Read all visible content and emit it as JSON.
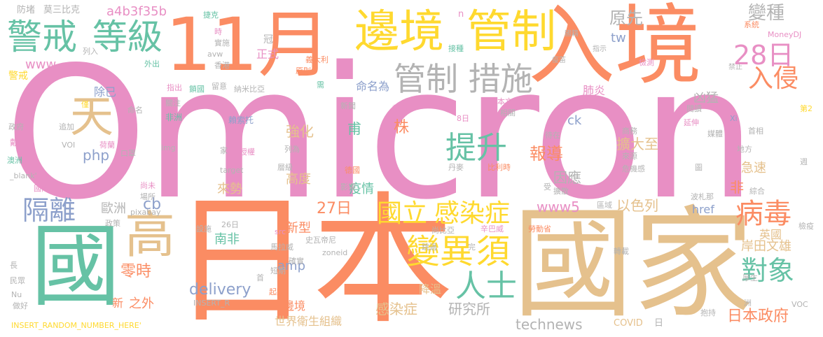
{
  "words": [
    {
      "text": "Omicron",
      "color": "#e88fc4"
    },
    {
      "text": "日本",
      "color": "#fb8c63"
    },
    {
      "text": "國家",
      "color": "#e5c18d"
    },
    {
      "text": "入境",
      "color": "#fb8c63"
    },
    {
      "text": "11月",
      "color": "#fb8c63"
    },
    {
      "text": "國",
      "color": "#66c2a5"
    },
    {
      "text": "邊境",
      "color": "#ffd92f"
    },
    {
      "text": "管制",
      "color": "#ffd92f"
    },
    {
      "text": "管制 措施",
      "color": "#b3b3b3"
    },
    {
      "text": "警戒",
      "color": "#66c2a5"
    },
    {
      "text": "等級",
      "color": "#66c2a5"
    },
    {
      "text": "高",
      "color": "#e5c18d"
    },
    {
      "text": "天",
      "color": "#e5c18d"
    },
    {
      "text": "28日",
      "color": "#e88fc4"
    },
    {
      "text": "入侵",
      "color": "#fb8c63"
    },
    {
      "text": "變種",
      "color": "#b3b3b3"
    },
    {
      "text": "原先",
      "color": "#b3b3b3"
    },
    {
      "text": "病毒",
      "color": "#fb8c63"
    },
    {
      "text": "提升",
      "color": "#66c2a5"
    },
    {
      "text": "變異",
      "color": "#ffd92f"
    },
    {
      "text": "須",
      "color": "#ffd92f"
    },
    {
      "text": "人士",
      "color": "#66c2a5"
    },
    {
      "text": "國立",
      "color": "#ffd92f"
    },
    {
      "text": "感染症",
      "color": "#ffd92f"
    },
    {
      "text": "隔離",
      "color": "#8da0cb"
    },
    {
      "text": "對象",
      "color": "#66c2a5"
    },
    {
      "text": "岸田文雄",
      "color": "#e5c18d"
    },
    {
      "text": "日本政府",
      "color": "#fb8c63"
    },
    {
      "text": "英國",
      "color": "#e5c18d"
    },
    {
      "text": "凶猛",
      "color": "#b3b3b3"
    },
    {
      "text": "a4b3f35b",
      "color": "#e88fc4"
    },
    {
      "text": "www",
      "color": "#e88fc4"
    },
    {
      "text": "php",
      "color": "#8da0cb"
    },
    {
      "text": "cb",
      "color": "#8da0cb"
    },
    {
      "text": "amp",
      "color": "#8da0cb"
    },
    {
      "text": "delivery",
      "color": "#8da0cb"
    },
    {
      "text": "technews",
      "color": "#b3b3b3"
    },
    {
      "text": "www5",
      "color": "#e88fc4"
    },
    {
      "text": "tw",
      "color": "#8da0cb"
    },
    {
      "text": "ck",
      "color": "#8da0cb"
    },
    {
      "text": "href",
      "color": "#8da0cb"
    },
    {
      "text": "27日",
      "color": "#fb8c63"
    },
    {
      "text": "強化",
      "color": "#e5c18d"
    },
    {
      "text": "甫",
      "color": "#66c2a5"
    },
    {
      "text": "株",
      "color": "#fb8c63"
    },
    {
      "text": "報導",
      "color": "#fb8c63"
    },
    {
      "text": "擴大至",
      "color": "#e5c18d"
    },
    {
      "text": "因應",
      "color": "#b3b3b3"
    },
    {
      "text": "以色列",
      "color": "#e5c18d"
    },
    {
      "text": "急速",
      "color": "#e5c18d"
    },
    {
      "text": "非",
      "color": "#fb8c63"
    },
    {
      "text": "來勢",
      "color": "#e5c18d"
    },
    {
      "text": "高度",
      "color": "#e5c18d"
    },
    {
      "text": "疫情",
      "color": "#66c2a5"
    },
    {
      "text": "新型",
      "color": "#fb8c63"
    },
    {
      "text": "歐洲",
      "color": "#b3b3b3"
    },
    {
      "text": "南非",
      "color": "#66c2a5"
    },
    {
      "text": "零時",
      "color": "#fb8c63"
    },
    {
      "text": "之外",
      "color": "#fb8c63"
    },
    {
      "text": "新",
      "color": "#fb8c63"
    },
    {
      "text": "邊境",
      "color": "#fb8c63"
    },
    {
      "text": "世界衛生組織",
      "color": "#e5c18d"
    },
    {
      "text": "感染症",
      "color": "#e5c18d"
    },
    {
      "text": "研究所",
      "color": "#b3b3b3"
    },
    {
      "text": "降溫",
      "color": "#e5c18d"
    },
    {
      "text": "除已",
      "color": "#8da0cb"
    },
    {
      "text": "正式",
      "color": "#e88fc4"
    },
    {
      "text": "命名為",
      "color": "#8da0cb"
    },
    {
      "text": "肺炎",
      "color": "#e88fc4"
    },
    {
      "text": "防堵",
      "color": "#b3b3b3"
    },
    {
      "text": "莫三比克",
      "color": "#b3b3b3"
    },
    {
      "text": "警戒",
      "color": "#ffd92f"
    },
    {
      "text": "列入",
      "color": "#b3b3b3"
    },
    {
      "text": "外出",
      "color": "#66c2a5"
    },
    {
      "text": "時",
      "color": "#e88fc4"
    },
    {
      "text": "實施",
      "color": "#b3b3b3"
    },
    {
      "text": "香港",
      "color": "#b3b3b3"
    },
    {
      "text": "avw",
      "color": "#b3b3b3"
    },
    {
      "text": "冠",
      "color": "#b3b3b3"
    },
    {
      "text": "捷克",
      "color": "#66c2a5"
    },
    {
      "text": "義大利",
      "color": "#fb8c63"
    },
    {
      "text": "接種",
      "color": "#66c2a5"
    },
    {
      "text": "n",
      "color": "#e88fc4"
    },
    {
      "text": "國籍",
      "color": "#b3b3b3"
    },
    {
      "text": "指示",
      "color": "#b3b3b3"
    },
    {
      "text": "疫苗",
      "color": "#b3b3b3"
    },
    {
      "text": "檢測",
      "color": "#e88fc4"
    },
    {
      "text": "禁止",
      "color": "#b3b3b3"
    },
    {
      "text": "系統",
      "color": "#fb8c63"
    },
    {
      "text": "MoneyDJ",
      "color": "#e88fc4"
    },
    {
      "text": "原則",
      "color": "#fb8c63"
    },
    {
      "text": "需",
      "color": "#66c2a5"
    },
    {
      "text": "指出",
      "color": "#e88fc4"
    },
    {
      "text": "鎖國",
      "color": "#66c2a5"
    },
    {
      "text": "留意",
      "color": "#b3b3b3"
    },
    {
      "text": "納米比亞",
      "color": "#b3b3b3"
    },
    {
      "text": "僅",
      "color": "#ffd92f"
    },
    {
      "text": "命名",
      "color": "#b3b3b3"
    },
    {
      "text": "關注",
      "color": "#b3b3b3"
    },
    {
      "text": "非洲",
      "color": "#66c2a5"
    },
    {
      "text": "賴索托",
      "color": "#8da0cb"
    },
    {
      "text": "新聞",
      "color": "#b3b3b3"
    },
    {
      "text": "放寬",
      "color": "#e88fc4"
    },
    {
      "text": "8日",
      "color": "#e88fc4"
    },
    {
      "text": "本文",
      "color": "#e88fc4"
    },
    {
      "text": "相關",
      "color": "#b3b3b3"
    },
    {
      "text": "閱讀",
      "color": "#b3b3b3"
    },
    {
      "text": "Xi",
      "color": "#8da0cb"
    },
    {
      "text": "第2",
      "color": "#ffd92f"
    },
    {
      "text": "延伸",
      "color": "#e88fc4"
    },
    {
      "text": "首相",
      "color": "#b3b3b3"
    },
    {
      "text": "商務",
      "color": "#b3b3b3"
    },
    {
      "text": "政府",
      "color": "#b3b3b3"
    },
    {
      "text": "追加",
      "color": "#b3b3b3"
    },
    {
      "text": "戴",
      "color": "#e88fc4"
    },
    {
      "text": "VOI",
      "color": "#b3b3b3"
    },
    {
      "text": "荷蘭",
      "color": "#e88fc4"
    },
    {
      "text": "口罩",
      "color": "#b3b3b3"
    },
    {
      "text": "img",
      "color": "#b3b3b3"
    },
    {
      "text": "家",
      "color": "#b3b3b3"
    },
    {
      "text": "授權",
      "color": "#e88fc4"
    },
    {
      "text": "待在",
      "color": "#b3b3b3"
    },
    {
      "text": "媒體",
      "color": "#b3b3b3"
    },
    {
      "text": "地方",
      "color": "#b3b3b3"
    },
    {
      "text": "澳洲",
      "color": "#66c2a5"
    },
    {
      "text": "列為",
      "color": "#b3b3b3"
    },
    {
      "text": "丹麥",
      "color": "#b3b3b3"
    },
    {
      "text": "比利時",
      "color": "#fb8c63"
    },
    {
      "text": "來源",
      "color": "#b3b3b3"
    },
    {
      "text": "危機感",
      "color": "#b3b3b3"
    },
    {
      "text": "圖",
      "color": "#b3b3b3"
    },
    {
      "text": "週",
      "color": "#b3b3b3"
    },
    {
      "text": "_blank'",
      "color": "#b3b3b3"
    },
    {
      "text": "target",
      "color": "#b3b3b3"
    },
    {
      "text": "層級",
      "color": "#b3b3b3"
    },
    {
      "text": "德國",
      "color": "#fb8c63"
    },
    {
      "text": "國內",
      "color": "#e88fc4"
    },
    {
      "text": "尚未",
      "color": "#e88fc4"
    },
    {
      "text": "影響",
      "color": "#b3b3b3"
    },
    {
      "text": "受",
      "color": "#b3b3b3"
    },
    {
      "text": "擴散",
      "color": "#b3b3b3"
    },
    {
      "text": "綜合",
      "color": "#b3b3b3"
    },
    {
      "text": "場所",
      "color": "#b3b3b3"
    },
    {
      "text": "pixabay",
      "color": "#b3b3b3"
    },
    {
      "text": "區域",
      "color": "#b3b3b3"
    },
    {
      "text": "波札那",
      "color": "#b3b3b3"
    },
    {
      "text": "政策",
      "color": "#b3b3b3"
    },
    {
      "text": "src",
      "color": "#e88fc4"
    },
    {
      "text": "史瓦帝尼",
      "color": "#b3b3b3"
    },
    {
      "text": "尚比亞",
      "color": "#b3b3b3"
    },
    {
      "text": "馬拉威",
      "color": "#b3b3b3"
    },
    {
      "text": "辛巴威",
      "color": "#e88fc4"
    },
    {
      "text": "設施",
      "color": "#b3b3b3"
    },
    {
      "text": "26日",
      "color": "#b3b3b3"
    },
    {
      "text": "勞動省",
      "color": "#fb8c63"
    },
    {
      "text": "檢疫",
      "color": "#b3b3b3"
    },
    {
      "text": "確實",
      "color": "#b3b3b3"
    },
    {
      "text": "跳過",
      "color": "#b3b3b3"
    },
    {
      "text": "zoneid",
      "color": "#b3b3b3"
    },
    {
      "text": "完",
      "color": "#b3b3b3"
    },
    {
      "text": "短期",
      "color": "#b3b3b3"
    },
    {
      "text": "轉載",
      "color": "#b3b3b3"
    },
    {
      "text": "長",
      "color": "#b3b3b3"
    },
    {
      "text": "民眾",
      "color": "#b3b3b3"
    },
    {
      "text": "Nu",
      "color": "#b3b3b3"
    },
    {
      "text": "首",
      "color": "#b3b3b3"
    },
    {
      "text": "起點",
      "color": "#fb8c63"
    },
    {
      "text": "厚生",
      "color": "#b3b3b3"
    },
    {
      "text": "做好",
      "color": "#b3b3b3"
    },
    {
      "text": "INSERT_R",
      "color": "#b3b3b3"
    },
    {
      "text": "洲",
      "color": "#b3b3b3"
    },
    {
      "text": "VOC",
      "color": "#b3b3b3"
    },
    {
      "text": "INSERT_RANDOM_NUMBER_HERE'",
      "color": "#ffd92f"
    },
    {
      "text": "COVID",
      "color": "#e5c18d"
    },
    {
      "text": "日",
      "color": "#b3b3b3"
    },
    {
      "text": "抱持",
      "color": "#b3b3b3"
    }
  ]
}
